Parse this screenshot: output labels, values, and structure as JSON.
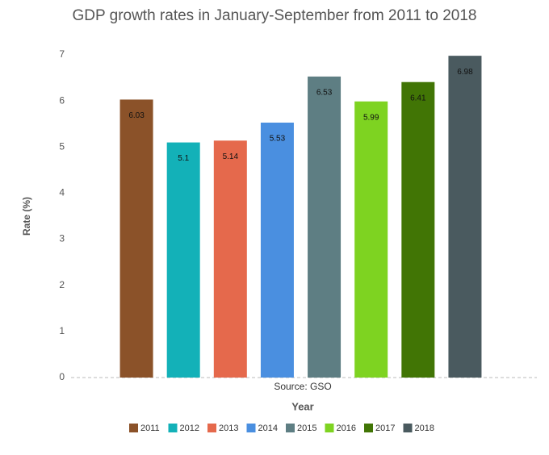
{
  "chart_data": {
    "type": "bar",
    "title": "GDP growth rates in January-September from 2011 to 2018",
    "categories": [
      "2011",
      "2012",
      "2013",
      "2014",
      "2015",
      "2016",
      "2017",
      "2018"
    ],
    "values": [
      6.03,
      5.1,
      5.14,
      5.53,
      6.53,
      5.99,
      6.41,
      6.98
    ],
    "colors": [
      "#8b5229",
      "#13b1b8",
      "#e5694c",
      "#4a8fe0",
      "#5e7e83",
      "#7ed321",
      "#417505",
      "#4a5a5f"
    ],
    "x_label": "Year",
    "y_label": "Rate (%)",
    "annotation": "Source: GSO",
    "ylim": [
      0,
      7
    ],
    "yticks": [
      0,
      1,
      2,
      3,
      4,
      5,
      6,
      7
    ],
    "grid": false
  }
}
